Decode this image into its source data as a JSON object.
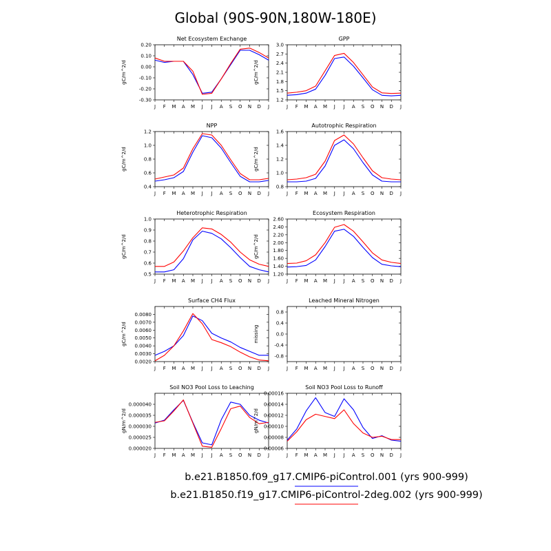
{
  "title": "Global (90S-90N,180W-180E)",
  "colors": {
    "series1": "#0000ff",
    "series2": "#ff0000",
    "axis": "#000000"
  },
  "legend": [
    {
      "label": "b.e21.B1850.f09_g17.CMIP6-piControl.001 (yrs 900-999)",
      "color": "#0000ff"
    },
    {
      "label": "b.e21.B1850.f19_g17.CMIP6-piControl-2deg.002 (yrs 900-999)",
      "color": "#ff0000"
    }
  ],
  "chart_data": [
    {
      "type": "line",
      "title": "Net Ecosystem Exchange",
      "ylabel": "gC/m^2/d",
      "categories": [
        "J",
        "F",
        "M",
        "A",
        "M",
        "J",
        "J",
        "A",
        "S",
        "O",
        "N",
        "D",
        "J"
      ],
      "ylim": [
        -0.3,
        0.2
      ],
      "yticks": [
        0.2,
        0.1,
        0.0,
        -0.1,
        -0.2,
        -0.3
      ],
      "ytick_labels": [
        "0.20",
        "0.10",
        "0.00",
        "-0.10",
        "-0.20",
        "-0.30"
      ],
      "series": [
        {
          "values": [
            0.06,
            0.04,
            0.05,
            0.05,
            -0.07,
            -0.24,
            -0.23,
            -0.11,
            0.02,
            0.15,
            0.15,
            0.11,
            0.06
          ]
        },
        {
          "values": [
            0.08,
            0.05,
            0.05,
            0.05,
            -0.04,
            -0.25,
            -0.24,
            -0.11,
            0.03,
            0.16,
            0.17,
            0.13,
            0.08
          ]
        }
      ]
    },
    {
      "type": "line",
      "title": "GPP",
      "ylabel": "gC/m^2/d",
      "categories": [
        "J",
        "F",
        "M",
        "A",
        "M",
        "J",
        "J",
        "A",
        "S",
        "O",
        "N",
        "D",
        "J"
      ],
      "ylim": [
        1.2,
        3.0
      ],
      "yticks": [
        3.0,
        2.7,
        2.4,
        2.1,
        1.8,
        1.5,
        1.2
      ],
      "ytick_labels": [
        "3.0",
        "2.7",
        "2.4",
        "2.1",
        "1.8",
        "1.5",
        "1.2"
      ],
      "series": [
        {
          "values": [
            1.35,
            1.37,
            1.42,
            1.55,
            2.0,
            2.55,
            2.6,
            2.3,
            1.92,
            1.53,
            1.35,
            1.33,
            1.35
          ]
        },
        {
          "values": [
            1.42,
            1.45,
            1.5,
            1.65,
            2.15,
            2.65,
            2.72,
            2.42,
            2.02,
            1.62,
            1.43,
            1.41,
            1.42
          ]
        }
      ]
    },
    {
      "type": "line",
      "title": "NPP",
      "ylabel": "gC/m^2/d",
      "categories": [
        "J",
        "F",
        "M",
        "A",
        "M",
        "J",
        "J",
        "A",
        "S",
        "O",
        "N",
        "D",
        "J"
      ],
      "ylim": [
        0.4,
        1.2
      ],
      "yticks": [
        1.2,
        1.0,
        0.8,
        0.6,
        0.4
      ],
      "ytick_labels": [
        "1.2",
        "1.0",
        "0.8",
        "0.6",
        "0.4"
      ],
      "series": [
        {
          "values": [
            0.48,
            0.5,
            0.53,
            0.62,
            0.9,
            1.14,
            1.11,
            0.96,
            0.75,
            0.55,
            0.47,
            0.47,
            0.49
          ]
        },
        {
          "values": [
            0.51,
            0.54,
            0.57,
            0.67,
            0.95,
            1.17,
            1.15,
            1.0,
            0.79,
            0.59,
            0.5,
            0.5,
            0.52
          ]
        }
      ]
    },
    {
      "type": "line",
      "title": "Autotrophic Respiration",
      "ylabel": "gC/m^2/d",
      "categories": [
        "J",
        "F",
        "M",
        "A",
        "M",
        "J",
        "J",
        "A",
        "S",
        "O",
        "N",
        "D",
        "J"
      ],
      "ylim": [
        0.8,
        1.6
      ],
      "yticks": [
        1.6,
        1.4,
        1.2,
        1.0,
        0.8
      ],
      "ytick_labels": [
        "1.6",
        "1.4",
        "1.2",
        "1.0",
        "0.8"
      ],
      "series": [
        {
          "values": [
            0.87,
            0.87,
            0.88,
            0.92,
            1.1,
            1.4,
            1.48,
            1.35,
            1.15,
            0.97,
            0.88,
            0.87,
            0.87
          ]
        },
        {
          "values": [
            0.9,
            0.91,
            0.93,
            0.98,
            1.17,
            1.47,
            1.55,
            1.42,
            1.22,
            1.03,
            0.93,
            0.91,
            0.9
          ]
        }
      ]
    },
    {
      "type": "line",
      "title": "Heterotrophic Respiration",
      "ylabel": "gC/m^2/d",
      "categories": [
        "J",
        "F",
        "M",
        "A",
        "M",
        "J",
        "J",
        "A",
        "S",
        "O",
        "N",
        "D",
        "J"
      ],
      "ylim": [
        0.5,
        1.0
      ],
      "yticks": [
        1.0,
        0.9,
        0.8,
        0.7,
        0.6,
        0.5
      ],
      "ytick_labels": [
        "1.0",
        "0.9",
        "0.8",
        "0.7",
        "0.6",
        "0.5"
      ],
      "series": [
        {
          "values": [
            0.52,
            0.52,
            0.54,
            0.64,
            0.81,
            0.89,
            0.87,
            0.82,
            0.74,
            0.65,
            0.57,
            0.54,
            0.52
          ]
        },
        {
          "values": [
            0.57,
            0.57,
            0.61,
            0.71,
            0.83,
            0.92,
            0.91,
            0.86,
            0.79,
            0.7,
            0.63,
            0.59,
            0.57
          ]
        }
      ]
    },
    {
      "type": "line",
      "title": "Ecosystem Respiration",
      "ylabel": "gC/m^2/d",
      "categories": [
        "J",
        "F",
        "M",
        "A",
        "M",
        "J",
        "J",
        "A",
        "S",
        "O",
        "N",
        "D",
        "J"
      ],
      "ylim": [
        1.2,
        2.6
      ],
      "yticks": [
        2.6,
        2.4,
        2.2,
        2.0,
        1.8,
        1.6,
        1.4,
        1.2
      ],
      "ytick_labels": [
        "2.60",
        "2.40",
        "2.20",
        "2.00",
        "1.80",
        "1.60",
        "1.40",
        "1.20"
      ],
      "series": [
        {
          "values": [
            1.38,
            1.39,
            1.42,
            1.56,
            1.9,
            2.29,
            2.34,
            2.16,
            1.88,
            1.62,
            1.45,
            1.41,
            1.39
          ]
        },
        {
          "values": [
            1.47,
            1.48,
            1.54,
            1.69,
            2.0,
            2.39,
            2.46,
            2.29,
            2.02,
            1.74,
            1.56,
            1.5,
            1.47
          ]
        }
      ]
    },
    {
      "type": "line",
      "title": "Surface CH4 Flux",
      "ylabel": "gC/m^2/d",
      "categories": [
        "J",
        "F",
        "M",
        "A",
        "M",
        "J",
        "J",
        "A",
        "S",
        "O",
        "N",
        "D",
        "J"
      ],
      "ylim": [
        0.002,
        0.009
      ],
      "yticks": [
        0.008,
        0.007,
        0.006,
        0.005,
        0.004,
        0.003,
        0.002
      ],
      "ytick_labels": [
        "0.0080",
        "0.0070",
        "0.0060",
        "0.0050",
        "0.0040",
        "0.0030",
        "0.0020"
      ],
      "series": [
        {
          "values": [
            0.0028,
            0.0033,
            0.004,
            0.0053,
            0.0078,
            0.0072,
            0.0056,
            0.005,
            0.0045,
            0.0038,
            0.0033,
            0.0028,
            0.0028
          ]
        },
        {
          "values": [
            0.0021,
            0.0028,
            0.004,
            0.0059,
            0.0081,
            0.0068,
            0.0048,
            0.0044,
            0.0039,
            0.0032,
            0.0026,
            0.0022,
            0.0021
          ]
        }
      ]
    },
    {
      "type": "line",
      "title": "Leached Mineral Nitrogen",
      "ylabel": "missing",
      "categories": [
        "J",
        "F",
        "M",
        "A",
        "M",
        "J",
        "J",
        "A",
        "S",
        "O",
        "N",
        "D",
        "J"
      ],
      "ylim": [
        -1.0,
        1.0
      ],
      "yticks": [
        0.8,
        0.4,
        0.0,
        -0.4,
        -0.8
      ],
      "ytick_labels": [
        "0.8",
        "0.4",
        "0.0",
        "-0.4",
        "-0.8"
      ],
      "series": []
    },
    {
      "type": "line",
      "title": "Soil NO3 Pool Loss to Leaching",
      "ylabel": "gN/m^2/d",
      "categories": [
        "J",
        "F",
        "M",
        "A",
        "M",
        "J",
        "J",
        "A",
        "S",
        "O",
        "N",
        "D",
        "J"
      ],
      "ylim": [
        2e-05,
        4.5e-05
      ],
      "yticks": [
        4e-05,
        3.5e-05,
        3e-05,
        2.5e-05,
        2e-05
      ],
      "ytick_labels": [
        "0.000040",
        "0.000035",
        "0.000030",
        "0.000025",
        "0.000020"
      ],
      "series": [
        {
          "values": [
            3.15e-05,
            3.28e-05,
            3.75e-05,
            4.18e-05,
            3.18e-05,
            2.25e-05,
            2.16e-05,
            3.3e-05,
            4.1e-05,
            4e-05,
            3.5e-05,
            3.28e-05,
            3.15e-05
          ]
        },
        {
          "values": [
            3.18e-05,
            3.25e-05,
            3.7e-05,
            4.2e-05,
            3.15e-05,
            2.1e-05,
            2.05e-05,
            2.9e-05,
            3.8e-05,
            3.92e-05,
            3.4e-05,
            3.12e-05,
            3.18e-05
          ]
        }
      ]
    },
    {
      "type": "line",
      "title": "Soil NO3 Pool Loss to Runoff",
      "ylabel": "gN/m^2/d",
      "categories": [
        "J",
        "F",
        "M",
        "A",
        "M",
        "J",
        "J",
        "A",
        "S",
        "O",
        "N",
        "D",
        "J"
      ],
      "ylim": [
        6e-05,
        0.00016
      ],
      "yticks": [
        0.00016,
        0.00014,
        0.00012,
        0.0001,
        8e-05,
        6e-05
      ],
      "ytick_labels": [
        "0.00016",
        "0.00014",
        "0.00012",
        "0.00010",
        "0.00008",
        "0.00006"
      ],
      "series": [
        {
          "values": [
            7.5e-05,
            9.5e-05,
            0.000128,
            0.000152,
            0.000125,
            0.000118,
            0.00015,
            0.00013,
            9.8e-05,
            7.8e-05,
            8.3e-05,
            7.5e-05,
            7.3e-05
          ]
        },
        {
          "values": [
            7.3e-05,
            9e-05,
            0.000112,
            0.000122,
            0.000118,
            0.000114,
            0.00013,
            0.000105,
            8.8e-05,
            8e-05,
            8.2e-05,
            7.6e-05,
            7.6e-05
          ]
        }
      ]
    }
  ]
}
